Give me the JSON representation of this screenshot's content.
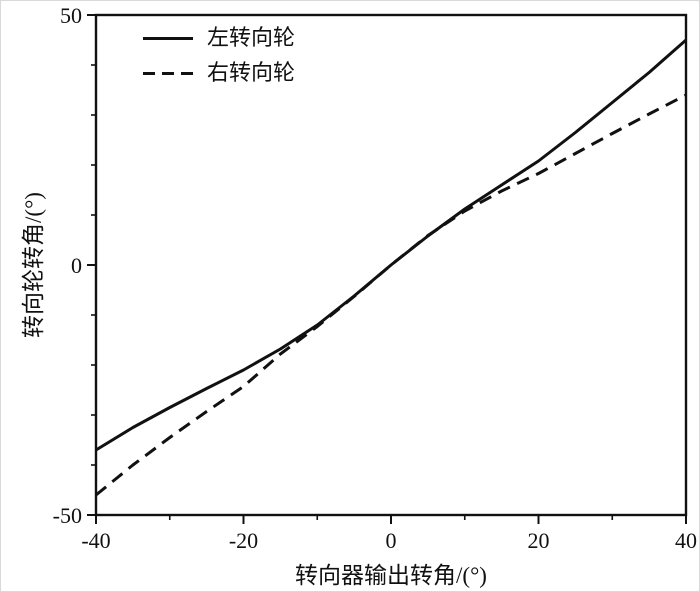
{
  "chart_data": {
    "type": "line",
    "title": "",
    "xlabel": "转向器输出转角/(°)",
    "ylabel": "转向轮转角/(°)",
    "xlim": [
      -40,
      40
    ],
    "ylim": [
      -50,
      50
    ],
    "x_major_ticks": [
      -40,
      -20,
      0,
      20,
      40
    ],
    "x_minor_ticks": [
      -30,
      -10,
      10,
      30
    ],
    "y_major_ticks": [
      -50,
      0,
      50
    ],
    "y_minor_ticks": [
      -40,
      -30,
      -20,
      -10,
      10,
      20,
      30,
      40
    ],
    "grid": false,
    "legend_position": "top-left",
    "x": [
      -40,
      -35,
      -30,
      -25,
      -20,
      -15,
      -10,
      -5,
      0,
      5,
      10,
      15,
      20,
      25,
      30,
      35,
      40
    ],
    "series": [
      {
        "name": "左转向轮",
        "line_style": "solid",
        "color": "#111111",
        "values": [
          -37,
          -32.5,
          -28.5,
          -24.7,
          -21,
          -16.8,
          -12,
          -6.2,
          0,
          5.8,
          11.2,
          16,
          20.8,
          26.5,
          32.5,
          38.5,
          45
        ]
      },
      {
        "name": "右转向轮",
        "line_style": "dashed",
        "color": "#111111",
        "values": [
          -46,
          -40,
          -34.5,
          -29.3,
          -24.3,
          -17.8,
          -12.3,
          -6.3,
          0,
          5.9,
          10.8,
          14.8,
          18.3,
          22.3,
          26.3,
          30.2,
          34
        ]
      }
    ]
  }
}
